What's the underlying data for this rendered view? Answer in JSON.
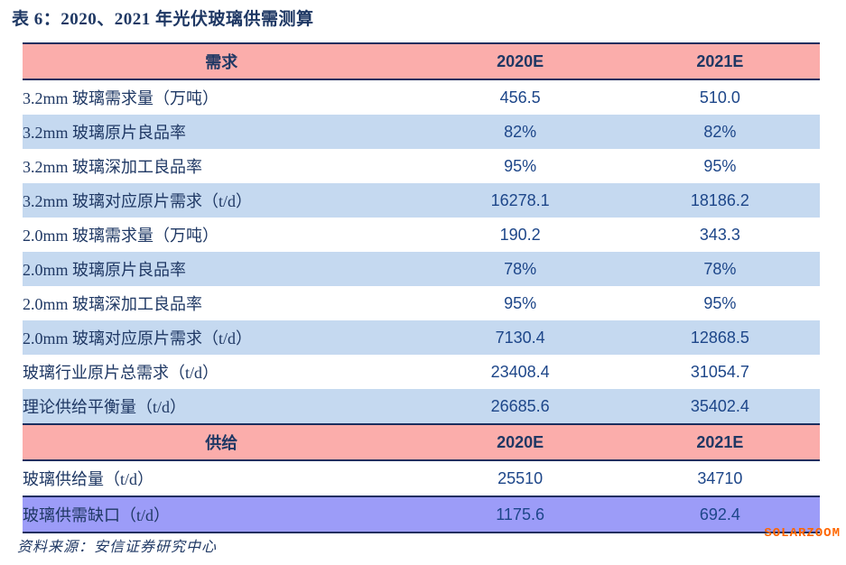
{
  "title": "表 6：2020、2021 年光伏玻璃供需测算",
  "source": "资料来源：安信证券研究中心",
  "watermark": "SOLARZOOM",
  "colors": {
    "header_pink": "#FBADAB",
    "row_blue": "#C5D9F0",
    "highlight_purple": "#9C9CF8",
    "border_navy": "#1B2E5F",
    "text_navy": "#1F3864",
    "num_navy": "#1D4689",
    "watermark_orange": "#FF6600"
  },
  "chart_data": {
    "type": "table",
    "title": "表 6：2020、2021 年光伏玻璃供需测算",
    "columns": [
      "2020E",
      "2021E"
    ],
    "sections": [
      {
        "header": "需求",
        "columns": [
          "2020E",
          "2021E"
        ],
        "rows": [
          {
            "label": "3.2mm 玻璃需求量（万吨）",
            "values": [
              "456.5",
              "510.0"
            ],
            "shade": false,
            "highlight": false
          },
          {
            "label": "3.2mm 玻璃原片良品率",
            "values": [
              "82%",
              "82%"
            ],
            "shade": true,
            "highlight": false
          },
          {
            "label": "3.2mm 玻璃深加工良品率",
            "values": [
              "95%",
              "95%"
            ],
            "shade": false,
            "highlight": false
          },
          {
            "label": "3.2mm 玻璃对应原片需求（t/d）",
            "values": [
              "16278.1",
              "18186.2"
            ],
            "shade": true,
            "highlight": false
          },
          {
            "label": "2.0mm 玻璃需求量（万吨）",
            "values": [
              "190.2",
              "343.3"
            ],
            "shade": false,
            "highlight": false
          },
          {
            "label": "2.0mm 玻璃原片良品率",
            "values": [
              "78%",
              "78%"
            ],
            "shade": true,
            "highlight": false
          },
          {
            "label": "2.0mm 玻璃深加工良品率",
            "values": [
              "95%",
              "95%"
            ],
            "shade": false,
            "highlight": false
          },
          {
            "label": "2.0mm 玻璃对应原片需求（t/d）",
            "values": [
              "7130.4",
              "12868.5"
            ],
            "shade": true,
            "highlight": false
          },
          {
            "label": "玻璃行业原片总需求（t/d）",
            "values": [
              "23408.4",
              "31054.7"
            ],
            "shade": false,
            "highlight": false
          },
          {
            "label": "理论供给平衡量（t/d）",
            "values": [
              "26685.6",
              "35402.4"
            ],
            "shade": true,
            "highlight": false
          }
        ]
      },
      {
        "header": "供给",
        "columns": [
          "2020E",
          "2021E"
        ],
        "rows": [
          {
            "label": "玻璃供给量（t/d）",
            "values": [
              "25510",
              "34710"
            ],
            "shade": false,
            "highlight": false
          },
          {
            "label": "玻璃供需缺口（t/d）",
            "values": [
              "1175.6",
              "692.4"
            ],
            "shade": false,
            "highlight": true
          }
        ]
      }
    ]
  }
}
